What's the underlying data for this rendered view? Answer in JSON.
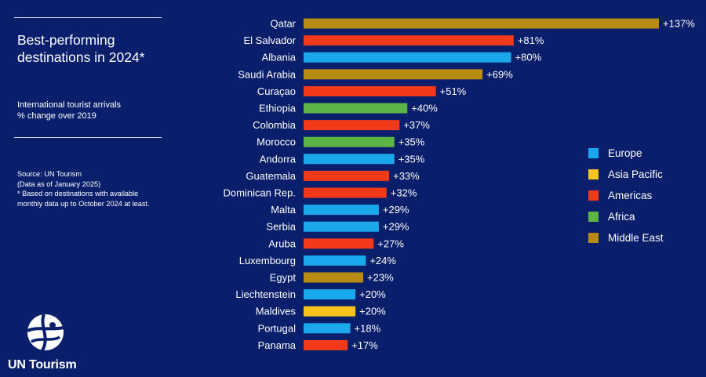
{
  "panel": {
    "title": "Best-performing destinations in 2024*",
    "subtitle_line1": "International tourist arrivals",
    "subtitle_line2": "% change over 2019",
    "source_line1": "Source: UN Tourism",
    "source_line2": "(Data as of January 2025)",
    "source_line3": "* Based on destinations with available",
    "source_line4": "monthly data up to October 2024 at least.",
    "logo_text": "UN Tourism"
  },
  "colors": {
    "background": "#0a1f6b",
    "Europe": "#1aa7ec",
    "Asia Pacific": "#f7c21a",
    "Americas": "#f23a1b",
    "Africa": "#5cb544",
    "Middle East": "#b88c12"
  },
  "chart_data": {
    "type": "bar",
    "orientation": "horizontal",
    "categories": [
      "Qatar",
      "El Salvador",
      "Albania",
      "Saudi Arabia",
      "Curaçao",
      "Ethiopia",
      "Colombia",
      "Morocco",
      "Andorra",
      "Guatemala",
      "Dominican Rep.",
      "Malta",
      "Serbia",
      "Aruba",
      "Luxembourg",
      "Egypt",
      "Liechtenstein",
      "Maldives",
      "Portugal",
      "Panama"
    ],
    "values": [
      137,
      81,
      80,
      69,
      51,
      40,
      37,
      35,
      35,
      33,
      32,
      29,
      29,
      27,
      24,
      23,
      20,
      20,
      18,
      17
    ],
    "labels": [
      "+137%",
      "+81%",
      "+80%",
      "+69%",
      "+51%",
      "+40%",
      "+37%",
      "+35%",
      "+35%",
      "+33%",
      "+32%",
      "+29%",
      "+29%",
      "+27%",
      "+24%",
      "+23%",
      "+20%",
      "+20%",
      "+18%",
      "+17%"
    ],
    "regions": [
      "Middle East",
      "Americas",
      "Europe",
      "Middle East",
      "Americas",
      "Africa",
      "Americas",
      "Africa",
      "Europe",
      "Americas",
      "Americas",
      "Europe",
      "Europe",
      "Americas",
      "Europe",
      "Middle East",
      "Europe",
      "Asia Pacific",
      "Europe",
      "Americas"
    ],
    "legend": [
      "Europe",
      "Asia Pacific",
      "Americas",
      "Africa",
      "Middle East"
    ],
    "legend_position": "right",
    "xlim": [
      0,
      137
    ],
    "grid": false
  }
}
